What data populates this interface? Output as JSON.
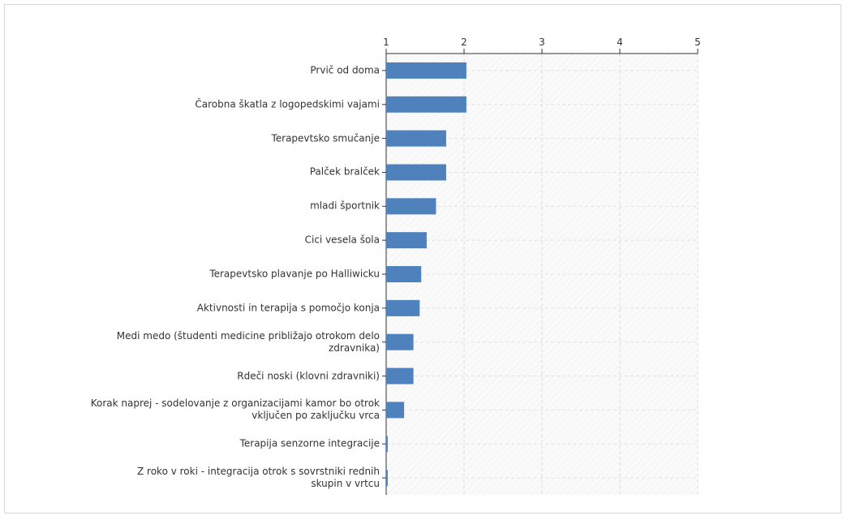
{
  "chart_data": {
    "type": "barh",
    "categories": [
      "Prvič od doma",
      "Čarobna škatla z logopedskimi vajami",
      "Terapevtsko smučanje",
      "Palček bralček",
      "mladi športnik",
      "Cici vesela šola",
      "Terapevtsko plavanje po Halliwicku",
      "Aktivnosti in terapija s pomočjo konja",
      "Medi medo (študenti medicine približajo otrokom delo\nzdravnika)",
      "Rdeči noski (klovni zdravniki)",
      "Korak naprej - sodelovanje z organizacijami kamor bo otrok\nvključen po zaključku vrca",
      "Terapija senzorne integracije",
      "Z roko v roki - integracija otrok s sovrstniki rednih\nskupin v vrtcu"
    ],
    "values": [
      2.03,
      2.03,
      1.77,
      1.77,
      1.64,
      1.52,
      1.45,
      1.43,
      1.35,
      1.35,
      1.23,
      1.02,
      1.02
    ],
    "color": "#4f81bd",
    "xlim": [
      1,
      5
    ],
    "xticks": [
      1,
      2,
      3,
      4,
      5
    ],
    "grid": true
  }
}
